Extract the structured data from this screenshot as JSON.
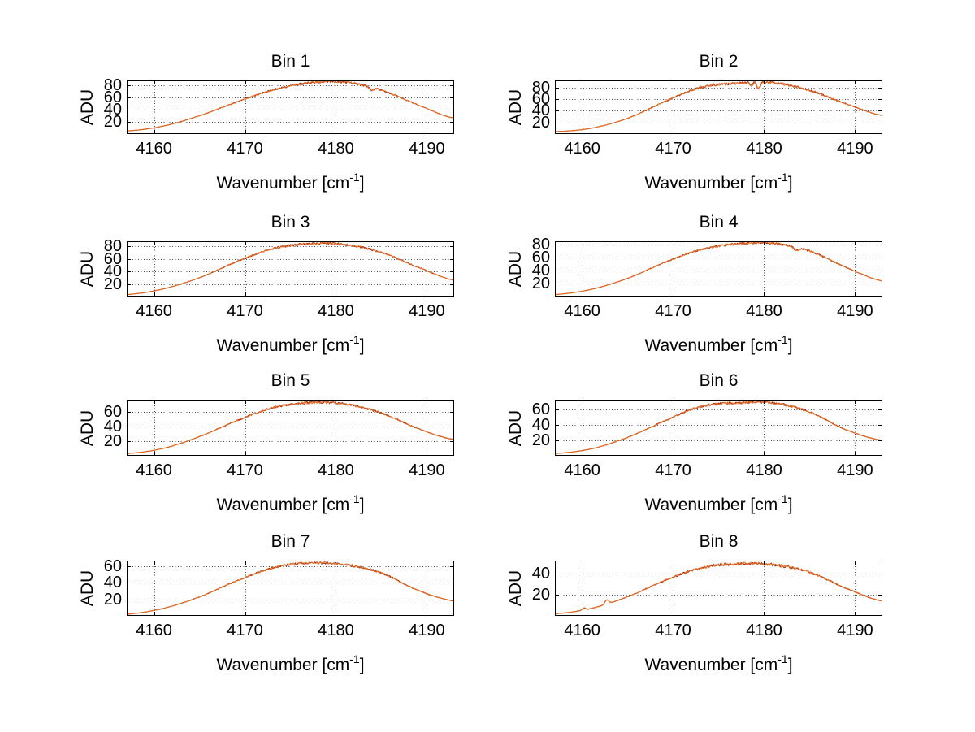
{
  "figure": {
    "background": "#ffffff",
    "axis_color": "#000000",
    "grid_color": "#4a4a4a",
    "text_color": "#000000",
    "line_color_primary": "#e36c1e",
    "line_color_secondary": "#a02a1e"
  },
  "axis_labels": {
    "ylabel": "ADU",
    "xlabel_pre": "Wavenumber [cm",
    "xlabel_sup": "-1",
    "xlabel_post": "]"
  },
  "chart_data": [
    {
      "type": "line",
      "title": "Bin 1",
      "ylabel": "ADU",
      "xlabel": "Wavenumber [cm^-1]",
      "x": [
        4157,
        4161,
        4165,
        4169,
        4173,
        4177,
        4181,
        4185,
        4189,
        4193
      ],
      "series": [
        {
          "name": "spectrum",
          "values": [
            5,
            13,
            30,
            52,
            72,
            84,
            85,
            72,
            48,
            26
          ]
        }
      ],
      "xlim": [
        4157,
        4193
      ],
      "ylim": [
        0,
        88
      ],
      "xticks": [
        4160,
        4170,
        4180,
        4190
      ],
      "yticks": [
        20,
        40,
        60,
        80
      ],
      "grid": "dotted",
      "noise_amplitude": 1.6,
      "seed": 1,
      "features": [
        {
          "x": 4183.9,
          "dy": -4.5,
          "w": 0.35
        }
      ]
    },
    {
      "type": "line",
      "title": "Bin 2",
      "ylabel": "ADU",
      "xlabel": "Wavenumber [cm^-1]",
      "x": [
        4157,
        4161,
        4165,
        4169,
        4173,
        4177,
        4181,
        4185,
        4189,
        4193
      ],
      "series": [
        {
          "name": "spectrum",
          "values": [
            4,
            10,
            27,
            55,
            80,
            87,
            88,
            75,
            52,
            32
          ]
        }
      ],
      "xlim": [
        4157,
        4193
      ],
      "ylim": [
        0,
        92
      ],
      "xticks": [
        4160,
        4170,
        4180,
        4190
      ],
      "yticks": [
        20,
        40,
        60,
        80
      ],
      "grid": "dotted",
      "noise_amplitude": 2.0,
      "seed": 2,
      "features": [
        {
          "x": 4179.4,
          "dy": -11,
          "w": 0.25
        },
        {
          "x": 4178.6,
          "dy": -5,
          "w": 0.2
        }
      ]
    },
    {
      "type": "line",
      "title": "Bin 3",
      "ylabel": "ADU",
      "xlabel": "Wavenumber [cm^-1]",
      "x": [
        4157,
        4161,
        4165,
        4169,
        4173,
        4177,
        4181,
        4185,
        4189,
        4193
      ],
      "series": [
        {
          "name": "spectrum",
          "values": [
            3,
            12,
            30,
            55,
            76,
            84,
            83,
            70,
            47,
            26
          ]
        }
      ],
      "xlim": [
        4157,
        4193
      ],
      "ylim": [
        0,
        88
      ],
      "xticks": [
        4160,
        4170,
        4180,
        4190
      ],
      "yticks": [
        20,
        40,
        60,
        80
      ],
      "grid": "dotted",
      "noise_amplitude": 1.6,
      "seed": 3,
      "features": []
    },
    {
      "type": "line",
      "title": "Bin 4",
      "ylabel": "ADU",
      "xlabel": "Wavenumber [cm^-1]",
      "x": [
        4157,
        4161,
        4165,
        4169,
        4173,
        4177,
        4181,
        4185,
        4189,
        4193
      ],
      "series": [
        {
          "name": "spectrum",
          "values": [
            3,
            11,
            28,
            52,
            72,
            81,
            82,
            70,
            45,
            24
          ]
        }
      ],
      "xlim": [
        4157,
        4193
      ],
      "ylim": [
        0,
        85
      ],
      "xticks": [
        4160,
        4170,
        4180,
        4190
      ],
      "yticks": [
        20,
        40,
        60,
        80
      ],
      "grid": "dotted",
      "noise_amplitude": 1.6,
      "seed": 4,
      "features": [
        {
          "x": 4183.6,
          "dy": -5,
          "w": 0.4
        }
      ]
    },
    {
      "type": "line",
      "title": "Bin 5",
      "ylabel": "ADU",
      "xlabel": "Wavenumber [cm^-1]",
      "x": [
        4157,
        4161,
        4165,
        4169,
        4173,
        4177,
        4181,
        4185,
        4189,
        4193
      ],
      "series": [
        {
          "name": "spectrum",
          "values": [
            3,
            10,
            26,
            47,
            65,
            72,
            70,
            58,
            37,
            22
          ]
        }
      ],
      "xlim": [
        4157,
        4193
      ],
      "ylim": [
        0,
        76
      ],
      "xticks": [
        4160,
        4170,
        4180,
        4190
      ],
      "yticks": [
        20,
        40,
        60
      ],
      "grid": "dotted",
      "noise_amplitude": 1.4,
      "seed": 5,
      "features": []
    },
    {
      "type": "line",
      "title": "Bin 6",
      "ylabel": "ADU",
      "xlabel": "Wavenumber [cm^-1]",
      "x": [
        4157,
        4161,
        4165,
        4169,
        4173,
        4177,
        4181,
        4185,
        4189,
        4193
      ],
      "series": [
        {
          "name": "spectrum",
          "values": [
            3,
            9,
            24,
            45,
            64,
            69,
            69,
            57,
            34,
            20
          ]
        }
      ],
      "xlim": [
        4157,
        4193
      ],
      "ylim": [
        0,
        73
      ],
      "xticks": [
        4160,
        4170,
        4180,
        4190
      ],
      "yticks": [
        20,
        40,
        60
      ],
      "grid": "dotted",
      "noise_amplitude": 1.4,
      "seed": 6,
      "features": []
    },
    {
      "type": "line",
      "title": "Bin 7",
      "ylabel": "ADU",
      "xlabel": "Wavenumber [cm^-1]",
      "x": [
        4157,
        4161,
        4165,
        4169,
        4173,
        4177,
        4181,
        4185,
        4189,
        4193
      ],
      "series": [
        {
          "name": "spectrum",
          "values": [
            2,
            9,
            23,
            42,
            58,
            64,
            62,
            52,
            31,
            18
          ]
        }
      ],
      "xlim": [
        4157,
        4193
      ],
      "ylim": [
        0,
        67
      ],
      "xticks": [
        4160,
        4170,
        4180,
        4190
      ],
      "yticks": [
        20,
        40,
        60
      ],
      "grid": "dotted",
      "noise_amplitude": 1.3,
      "seed": 7,
      "features": []
    },
    {
      "type": "line",
      "title": "Bin 8",
      "ylabel": "ADU",
      "xlabel": "Wavenumber [cm^-1]",
      "x": [
        4157,
        4161,
        4165,
        4169,
        4173,
        4177,
        4181,
        4185,
        4189,
        4193
      ],
      "series": [
        {
          "name": "spectrum",
          "values": [
            2,
            7,
            18,
            33,
            45,
            49,
            48,
            41,
            26,
            14
          ]
        }
      ],
      "xlim": [
        4157,
        4193
      ],
      "ylim": [
        0,
        52
      ],
      "xticks": [
        4160,
        4170,
        4180,
        4190
      ],
      "yticks": [
        20,
        40
      ],
      "grid": "dotted",
      "noise_amplitude": 1.2,
      "seed": 8,
      "features": [
        {
          "x": 4162.7,
          "dy": 4,
          "w": 0.3
        },
        {
          "x": 4160.2,
          "dy": 2,
          "w": 0.25
        }
      ]
    }
  ]
}
